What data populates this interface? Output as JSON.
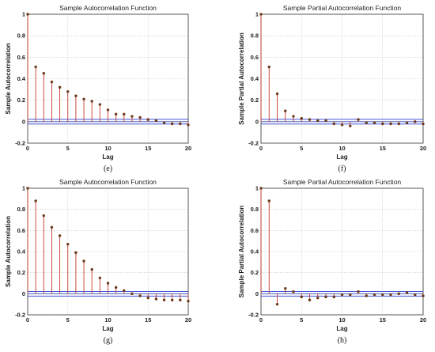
{
  "figure": {
    "colors": {
      "stem": "#c0392b",
      "marker": "#6b3a1a",
      "bound": "#2b3fd0",
      "zero": "#3344aa",
      "grid": "#c8c8c8"
    }
  },
  "chart_data": [
    {
      "type": "stem",
      "title": "Sample Autocorrelation Function",
      "xlabel": "Lag",
      "ylabel": "Sample Autocorrelation",
      "caption": "(e)",
      "xlim": [
        0,
        20
      ],
      "ylim": [
        -0.2,
        1
      ],
      "xticks": [
        "0",
        "5",
        "10",
        "15",
        "20"
      ],
      "yticks": [
        "-0.2",
        "0",
        "0.2",
        "0.4",
        "0.6",
        "0.8",
        "1"
      ],
      "grid": true,
      "confidence_bounds": [
        0.022,
        -0.022
      ],
      "x": [
        0,
        1,
        2,
        3,
        4,
        5,
        6,
        7,
        8,
        9,
        10,
        11,
        12,
        13,
        14,
        15,
        16,
        17,
        18,
        19,
        20
      ],
      "values": [
        1,
        0.51,
        0.45,
        0.37,
        0.32,
        0.28,
        0.24,
        0.21,
        0.19,
        0.16,
        0.11,
        0.07,
        0.07,
        0.05,
        0.04,
        0.02,
        0.01,
        -0.01,
        -0.02,
        -0.02,
        -0.03
      ]
    },
    {
      "type": "stem",
      "title": "Sample Partial Autocorrelation Function",
      "xlabel": "Lag",
      "ylabel": "Sample Partial Autocorrelation",
      "caption": "(f)",
      "xlim": [
        0,
        20
      ],
      "ylim": [
        -0.2,
        1
      ],
      "xticks": [
        "0",
        "5",
        "10",
        "15",
        "20"
      ],
      "yticks": [
        "-0.2",
        "0",
        "0.2",
        "0.4",
        "0.6",
        "0.8",
        "1"
      ],
      "grid": true,
      "confidence_bounds": [
        0.022,
        -0.022
      ],
      "x": [
        0,
        1,
        2,
        3,
        4,
        5,
        6,
        7,
        8,
        9,
        10,
        11,
        12,
        13,
        14,
        15,
        16,
        17,
        18,
        19,
        20
      ],
      "values": [
        1,
        0.51,
        0.26,
        0.1,
        0.05,
        0.03,
        0.02,
        0.01,
        0.01,
        -0.02,
        -0.03,
        -0.04,
        0.02,
        -0.01,
        -0.01,
        -0.02,
        -0.02,
        -0.02,
        -0.01,
        0.0,
        -0.02
      ]
    },
    {
      "type": "stem",
      "title": "Sample Autocorrelation Function",
      "xlabel": "Lag",
      "ylabel": "Sample Autocorrelation",
      "caption": "(g)",
      "xlim": [
        0,
        20
      ],
      "ylim": [
        -0.2,
        1
      ],
      "xticks": [
        "0",
        "5",
        "10",
        "15",
        "20"
      ],
      "yticks": [
        "-0.2",
        "0",
        "0.2",
        "0.4",
        "0.6",
        "0.8",
        "1"
      ],
      "grid": true,
      "confidence_bounds": [
        0.022,
        -0.022
      ],
      "x": [
        0,
        1,
        2,
        3,
        4,
        5,
        6,
        7,
        8,
        9,
        10,
        11,
        12,
        13,
        14,
        15,
        16,
        17,
        18,
        19,
        20
      ],
      "values": [
        1,
        0.88,
        0.74,
        0.63,
        0.55,
        0.47,
        0.39,
        0.31,
        0.23,
        0.15,
        0.1,
        0.06,
        0.03,
        0.0,
        -0.02,
        -0.04,
        -0.05,
        -0.06,
        -0.06,
        -0.06,
        -0.07
      ]
    },
    {
      "type": "stem",
      "title": "Sample Partial Autocorrelation Function",
      "xlabel": "Lag",
      "ylabel": "Sample Partial Autocorrelation",
      "caption": "(h)",
      "xlim": [
        0,
        20
      ],
      "ylim": [
        -0.2,
        1
      ],
      "xticks": [
        "0",
        "5",
        "10",
        "15",
        "20"
      ],
      "yticks": [
        "-0.2",
        "0",
        "0.2",
        "0.4",
        "0.6",
        "0.8",
        "1"
      ],
      "grid": true,
      "confidence_bounds": [
        0.022,
        -0.022
      ],
      "x": [
        0,
        1,
        2,
        3,
        4,
        5,
        6,
        7,
        8,
        9,
        10,
        11,
        12,
        13,
        14,
        15,
        16,
        17,
        18,
        19,
        20
      ],
      "values": [
        1,
        0.88,
        -0.1,
        0.05,
        0.02,
        -0.03,
        -0.06,
        -0.04,
        -0.03,
        -0.03,
        -0.01,
        -0.01,
        0.02,
        -0.02,
        -0.01,
        -0.01,
        -0.01,
        0.0,
        0.01,
        -0.01,
        -0.02
      ]
    }
  ]
}
